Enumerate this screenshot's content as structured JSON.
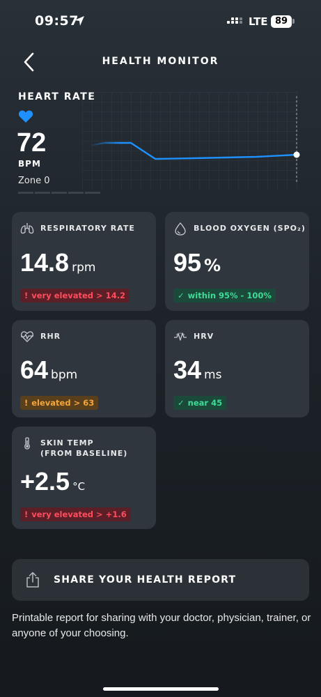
{
  "status_bar": {
    "time": "09:57",
    "network": "LTE",
    "battery": "89"
  },
  "header": {
    "title": "HEALTH MONITOR"
  },
  "heart_rate": {
    "title": "HEART RATE",
    "value": "72",
    "unit": "BPM",
    "zone": "Zone 0",
    "accent_color": "#1e90ff"
  },
  "metrics": {
    "respiratory": {
      "label": "RESPIRATORY RATE",
      "icon": "lungs-icon",
      "value": "14.8",
      "unit": "rpm",
      "badge_mark": "!",
      "badge": "very elevated > 14.2",
      "status": "red"
    },
    "blood_oxygen": {
      "label": "BLOOD OXYGEN (SPO₂)",
      "icon": "droplet-icon",
      "value": "95",
      "unit": "%",
      "badge_mark": "✓",
      "badge": "within 95% - 100%",
      "status": "green"
    },
    "rhr": {
      "label": "RHR",
      "icon": "heart-rate-icon",
      "value": "64",
      "unit": "bpm",
      "badge_mark": "!",
      "badge": "elevated > 63",
      "status": "orange"
    },
    "hrv": {
      "label": "HRV",
      "icon": "hrv-wave-icon",
      "value": "34",
      "unit": "ms",
      "badge_mark": "✓",
      "badge": "near 45",
      "status": "green"
    },
    "skin_temp": {
      "label_line1": "SKIN TEMP",
      "label_line2": "(FROM BASELINE)",
      "icon": "thermometer-icon",
      "value": "+2.5",
      "unit": "°C",
      "badge_mark": "!",
      "badge": "very elevated > +1.6",
      "status": "red"
    }
  },
  "share": {
    "label": "SHARE YOUR HEALTH REPORT",
    "description": "Printable report for sharing with your doctor, physician, trainer, or anyone of your choosing."
  },
  "colors": {
    "red": "#ff4d5e",
    "orange": "#f4a63a",
    "green": "#3ddc97",
    "card": "#30363d"
  }
}
